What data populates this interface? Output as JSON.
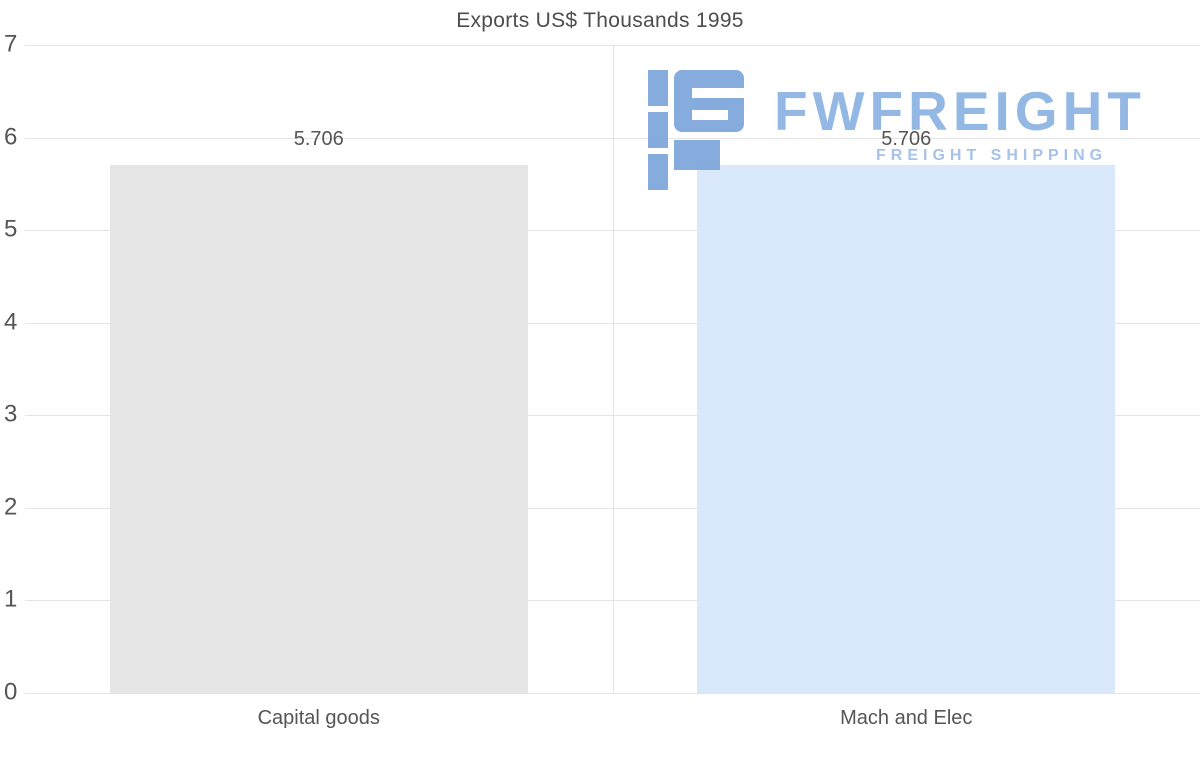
{
  "chart_data": {
    "type": "bar",
    "title": "Exports US$ Thousands 1995",
    "categories": [
      "Capital goods",
      "Mach and Elec"
    ],
    "values": [
      5.706,
      5.706
    ],
    "value_labels": [
      "5.706",
      "5.706"
    ],
    "bar_colors": [
      "#e6e6e6",
      "#d9e8fa"
    ],
    "xlabel": "",
    "ylabel": "",
    "ylim": [
      0,
      7
    ],
    "y_ticks": [
      7,
      6,
      5,
      4,
      3,
      2,
      1,
      0
    ],
    "grid": true,
    "legend": false
  },
  "watermark": {
    "brand": "FWFREIGHT",
    "tagline": "FREIGHT SHIPPING",
    "color": "#8cb2e2"
  },
  "colors": {
    "title": "#4d4d4d",
    "axis_text": "#555555",
    "gridline": "#e4e4e4"
  }
}
